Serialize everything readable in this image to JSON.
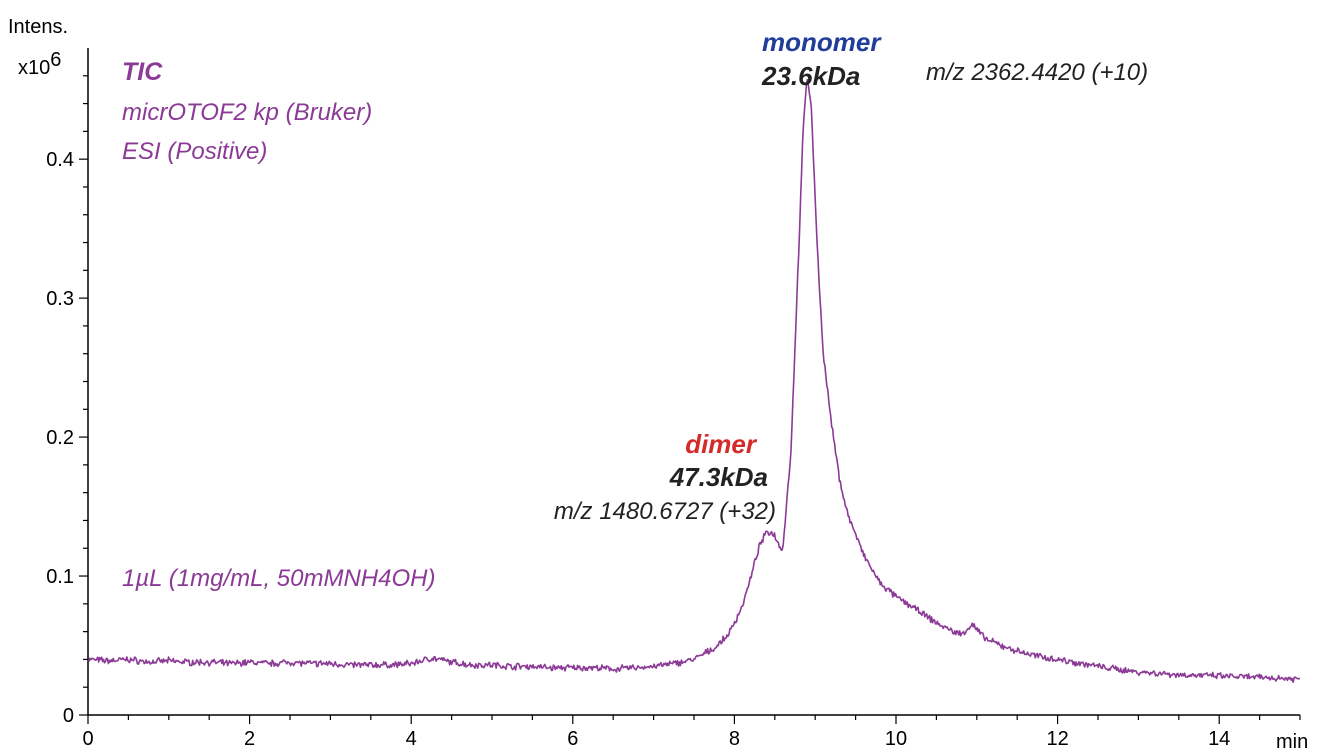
{
  "chart_data": {
    "type": "line",
    "y_axis_title": "Intens.",
    "y_axis_multiplier": "x10",
    "y_axis_multiplier_exp": "6",
    "x_axis_unit": "min",
    "xlim": [
      0,
      15
    ],
    "ylim": [
      0,
      0.48
    ],
    "x_ticks": [
      0,
      2,
      4,
      6,
      8,
      10,
      12,
      14
    ],
    "x_tick_labels": [
      "0",
      "2",
      "4",
      "6",
      "8",
      "10",
      "12",
      "14"
    ],
    "y_ticks": [
      0,
      0.1,
      0.2,
      0.3,
      0.4
    ],
    "y_tick_labels": [
      "0",
      "0.1",
      "0.2",
      "0.3",
      "0.4"
    ],
    "series": [
      {
        "color": "#8b3a96",
        "x": [
          0,
          0.25,
          0.5,
          0.75,
          1.0,
          1.25,
          1.5,
          1.75,
          2.0,
          2.25,
          2.5,
          2.75,
          3.0,
          3.25,
          3.5,
          3.75,
          4.0,
          4.25,
          4.5,
          4.75,
          5.0,
          5.25,
          5.5,
          5.75,
          6.0,
          6.25,
          6.5,
          6.75,
          7.0,
          7.25,
          7.5,
          7.75,
          7.9,
          8.0,
          8.1,
          8.2,
          8.3,
          8.4,
          8.5,
          8.55,
          8.6,
          8.7,
          8.8,
          8.85,
          8.9,
          8.95,
          9.0,
          9.05,
          9.1,
          9.2,
          9.3,
          9.4,
          9.5,
          9.6,
          9.7,
          9.8,
          9.9,
          10.0,
          10.2,
          10.4,
          10.6,
          10.8,
          10.95,
          11.1,
          11.3,
          11.5,
          11.7,
          12.0,
          12.3,
          12.6,
          13.0,
          13.5,
          14.0,
          14.5,
          15.0
        ],
        "y": [
          0.04,
          0.039,
          0.04,
          0.038,
          0.039,
          0.038,
          0.038,
          0.037,
          0.038,
          0.037,
          0.038,
          0.037,
          0.037,
          0.036,
          0.036,
          0.036,
          0.037,
          0.041,
          0.038,
          0.036,
          0.036,
          0.035,
          0.035,
          0.034,
          0.034,
          0.034,
          0.033,
          0.034,
          0.035,
          0.037,
          0.04,
          0.048,
          0.056,
          0.066,
          0.079,
          0.098,
          0.12,
          0.132,
          0.13,
          0.122,
          0.12,
          0.19,
          0.34,
          0.42,
          0.46,
          0.44,
          0.37,
          0.31,
          0.26,
          0.21,
          0.17,
          0.145,
          0.13,
          0.115,
          0.105,
          0.095,
          0.09,
          0.085,
          0.078,
          0.07,
          0.063,
          0.058,
          0.065,
          0.055,
          0.05,
          0.046,
          0.043,
          0.04,
          0.037,
          0.034,
          0.031,
          0.029,
          0.028,
          0.027,
          0.026
        ]
      }
    ],
    "annotations": {
      "tic": "TIC",
      "instrument": "micrOTOF2 kp (Bruker)",
      "ionization": "ESI (Positive)",
      "sample": "1µL (1mg/mL, 50mMNH4OH)",
      "monomer_label": "monomer",
      "monomer_mass": "23.6kDa",
      "monomer_mz": "m/z 2362.4420 (+10)",
      "dimer_label": "dimer",
      "dimer_mass": "47.3kDa",
      "dimer_mz": "m/z 1480.6727 (+32)"
    },
    "colors": {
      "trace": "#8b3a96",
      "annotation": "#8b3a96",
      "monomer": "#1f3d99",
      "dimer": "#d42a2a",
      "mass": "#222222"
    }
  }
}
